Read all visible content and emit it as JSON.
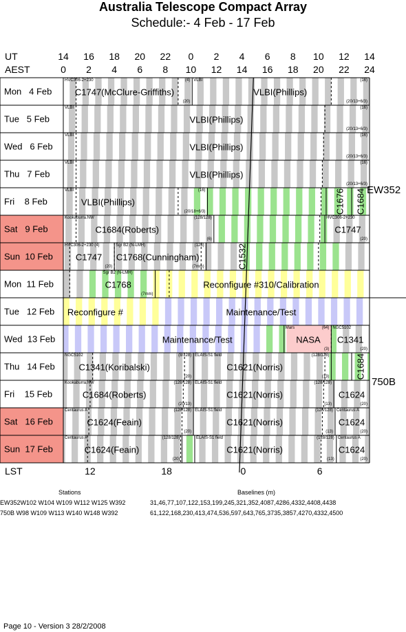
{
  "title": "Australia Telescope Compact Array",
  "subtitle": "Schedule:- 4  Feb - 17 Feb",
  "ut_label": "UT",
  "aest_label": "AEST",
  "lst_label": "LST",
  "ut_ticks": [
    "14",
    "16",
    "18",
    "20",
    "22",
    "0",
    "2",
    "4",
    "6",
    "8",
    "10",
    "12",
    "14"
  ],
  "aest_ticks": [
    "0",
    "2",
    "4",
    "6",
    "8",
    "10",
    "12",
    "14",
    "16",
    "18",
    "20",
    "22",
    "24"
  ],
  "lst_ticks": [
    "12",
    "18",
    "0",
    "6"
  ],
  "days": [
    {
      "label": "Mon   4 Feb",
      "weekend": false
    },
    {
      "label": "Tue   5 Feb",
      "weekend": false
    },
    {
      "label": "Wed   6 Feb",
      "weekend": false
    },
    {
      "label": "Thu   7 Feb",
      "weekend": false
    },
    {
      "label": "Fri    8 Feb",
      "weekend": false
    },
    {
      "label": "Sat   9 Feb",
      "weekend": true
    },
    {
      "label": "Sun  10 Feb",
      "weekend": true
    },
    {
      "label": "Mon  11 Feb",
      "weekend": false
    },
    {
      "label": "Tue   12 Feb",
      "weekend": false
    },
    {
      "label": "Wed  13 Feb",
      "weekend": false
    },
    {
      "label": "Thu   14 Feb",
      "weekend": false
    },
    {
      "label": "Fri    15 Feb",
      "weekend": false
    },
    {
      "label": "Sat   16 Feb",
      "weekend": true
    },
    {
      "label": "Sun  17 Feb",
      "weekend": true
    }
  ],
  "colors": {
    "weekend": "#f4948a",
    "gray": "#c8c8c8",
    "green": "#9be38e",
    "yellow": "#ffff9a",
    "lavender": "#c8c8f8",
    "pink": "#fccccc"
  },
  "configs": [
    {
      "name": "EW352",
      "span": "4-11 Feb"
    },
    {
      "name": "750B",
      "span": "12-17 Feb"
    }
  ],
  "stations_heading": "Stations",
  "baselines_heading": "Baselines (m)",
  "station_rows": [
    {
      "stations": "EW352W102 W104 W109 W112 W125 W392",
      "baselines": "31,46,77,107,122,153,199,245,321,352,4087,4286,4332,4408,4438"
    },
    {
      "stations": "750B   W98 W109 W113 W140 W148 W392",
      "baselines": "61,122,168,230,413,474,536,597,643,765,3735,3857,4270,4332,4500"
    }
  ],
  "footer": "Page 10 - Version 3  28/2/2008",
  "blocks": [
    {
      "day": 0,
      "text": "C1747(McClure-Griffiths)",
      "tl": "HVC306-2+230",
      "tr": "(4)",
      "br": "(20)"
    },
    {
      "day": 0,
      "text": "VLBI(Phillips)",
      "tl": "VLBI",
      "tr": "(16)",
      "br": "(20/13+6/3)"
    },
    {
      "day": 1,
      "text": "VLBI(Phillips)",
      "tl": "VLBI",
      "tr": "(16)",
      "br": "(20/13+6/3)"
    },
    {
      "day": 2,
      "text": "VLBI(Phillips)",
      "tl": "VLBI",
      "tr": "(16)",
      "br": "(20/13+6/3)"
    },
    {
      "day": 3,
      "text": "VLBI(Phillips)",
      "tl": "VLBI",
      "tr": "(16)",
      "br": "(20/13+6/3)"
    },
    {
      "day": 4,
      "text": "VLBI(Phillips)",
      "tl": "VLBI",
      "tr": "(16)",
      "br": "(20/18+6/3)"
    },
    {
      "day": 4,
      "text": "C1676",
      "vertical": true
    },
    {
      "day": 4,
      "text": "C1684",
      "vertical": true
    },
    {
      "day": 5,
      "text": "C1684(Roberts)",
      "tl": "Kookaburra.NW",
      "tr": "(128/128)",
      "br": "(6)"
    },
    {
      "day": 5,
      "text": "C1747",
      "tl": "HVC306-2+230",
      "br": "(20)"
    },
    {
      "day": 6,
      "text": "C1747",
      "tl": "HVC306-2+230 (4)",
      "br": "(20)"
    },
    {
      "day": 6,
      "text": "C1768(Cunningham)",
      "tl": "Sgr B2 (N-LMH)",
      "tr": "(128)",
      "br": "(7mm)"
    },
    {
      "day": 6,
      "text": "C1532",
      "vertical": true
    },
    {
      "day": 7,
      "text": "C1768",
      "tl": "Sgr B2 (N-LMH)",
      "br": "(7mm)"
    },
    {
      "day": 7,
      "text": "Reconfigure #310/Calibration"
    },
    {
      "day": 8,
      "text": "Reconfigure #"
    },
    {
      "day": 8,
      "text": "Maintenance/Test"
    },
    {
      "day": 9,
      "text": "Maintenance/Test"
    },
    {
      "day": 9,
      "text": "NASA",
      "tl": "Mars",
      "tr": "(64)",
      "br": "(3)"
    },
    {
      "day": 9,
      "text": "C1341",
      "tl": "NGC5102",
      "br": "(20)"
    },
    {
      "day": 10,
      "text": "C1341(Koribalski)",
      "tl": "NGC5102",
      "tr": "(8/128)",
      "br": "(20)"
    },
    {
      "day": 10,
      "text": "C1621(Norris)",
      "tl": "ELAIS-S1 field",
      "tr": "(128/128)",
      "br": "(13)"
    },
    {
      "day": 10,
      "text": "C1684",
      "vertical": true
    },
    {
      "day": 11,
      "text": "C1684(Roberts)",
      "tl": "Kookaburra.NW",
      "tr": "(128/128)",
      "br": "(20/13)"
    },
    {
      "day": 11,
      "text": "C1621(Norris)",
      "tl": "ELAIS-S1 field",
      "tr": "(128/128)",
      "br": "(13)"
    },
    {
      "day": 11,
      "text": "C1624",
      "br": "(20)"
    },
    {
      "day": 12,
      "text": "C1624(Feain)",
      "tl": "Centaurus A",
      "tr": "(128/128)",
      "br": "(20)"
    },
    {
      "day": 12,
      "text": "C1621(Norris)",
      "tl": "ELAIS-S1 field",
      "tr": "(128/128)",
      "br": "(13)"
    },
    {
      "day": 12,
      "text": "C1624",
      "tl": "Centaurus A",
      "br": "(20)"
    },
    {
      "day": 13,
      "text": "C1624(Feain)",
      "tl": "Centaurus A",
      "tr": "(128/128)",
      "br": "(20)"
    },
    {
      "day": 13,
      "text": "C1621(Norris)",
      "tl": "ELAIS-S1 field",
      "tr": "(128/128)",
      "br": "(13)"
    },
    {
      "day": 13,
      "text": "C1624",
      "tl": "Centaurus A",
      "br": "(20)"
    }
  ]
}
